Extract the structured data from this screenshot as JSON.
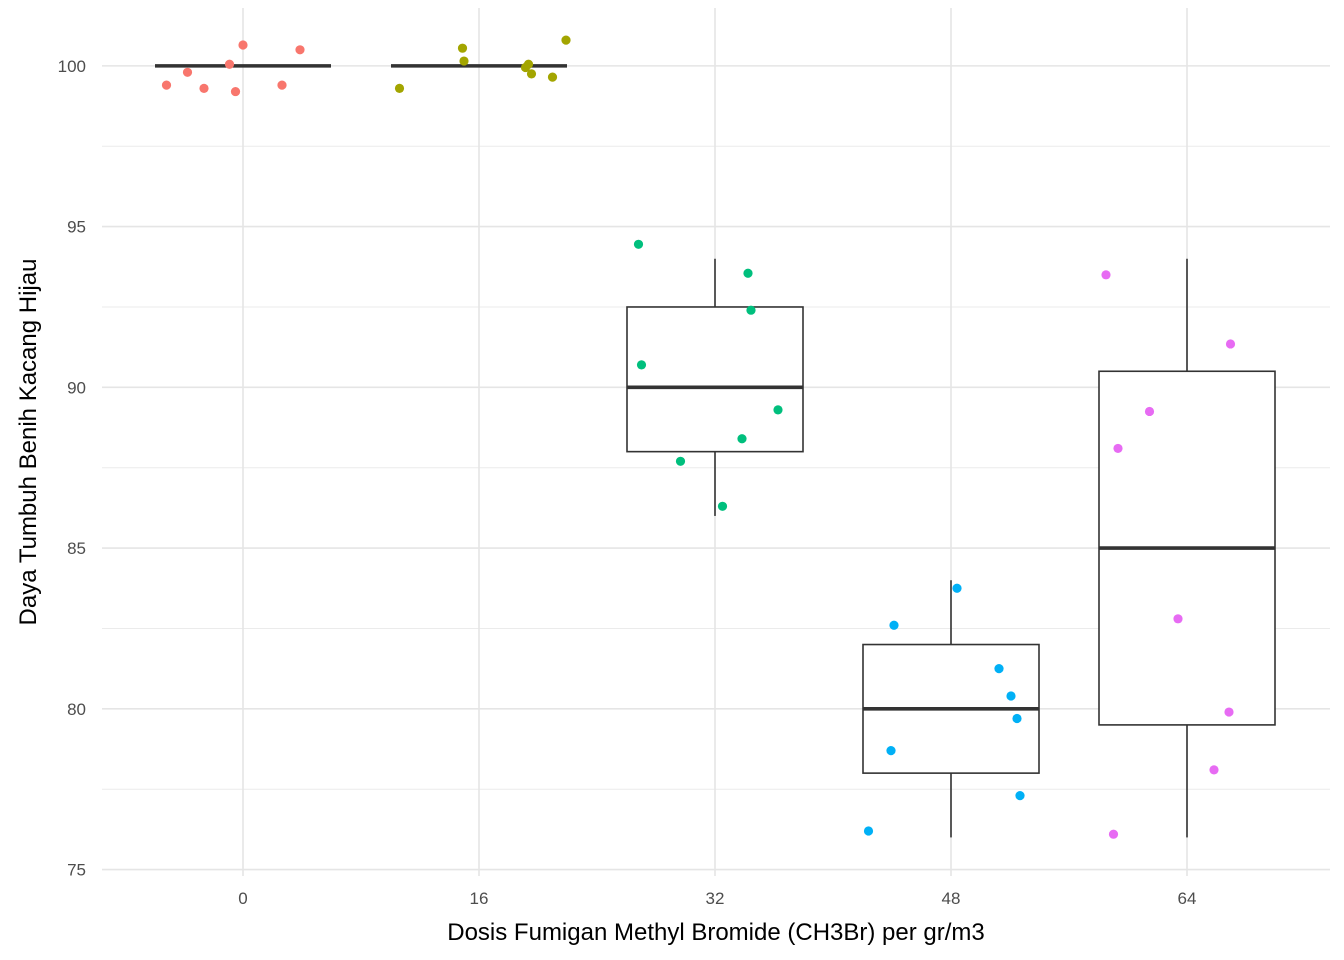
{
  "chart_data": {
    "type": "box-jitter",
    "xlabel": "Dosis Fumigan Methyl Bromide (CH3Br) per gr/m3",
    "ylabel": "Daya Tumbuh Benih Kacang Hijau",
    "categories": [
      "0",
      "16",
      "32",
      "48",
      "64"
    ],
    "ylim": [
      74.8,
      101.8
    ],
    "yticks": [
      "75",
      "80",
      "85",
      "90",
      "95",
      "100"
    ],
    "grid": true,
    "legend": "none",
    "colors": [
      "#F8766D",
      "#A3A500",
      "#00BF7D",
      "#00B0F6",
      "#E76BF3"
    ],
    "boxes": [
      {
        "category": "0",
        "min": 100,
        "q1": 100,
        "median": 100,
        "q3": 100,
        "max": 100
      },
      {
        "category": "16",
        "min": 100,
        "q1": 100,
        "median": 100,
        "q3": 100,
        "max": 100
      },
      {
        "category": "32",
        "min": 86,
        "q1": 88,
        "median": 90,
        "q3": 92.5,
        "max": 94
      },
      {
        "category": "48",
        "min": 76,
        "q1": 78,
        "median": 80,
        "q3": 82,
        "max": 84
      },
      {
        "category": "64",
        "min": 76,
        "q1": 79.5,
        "median": 85,
        "q3": 90.5,
        "max": 94
      }
    ],
    "points": [
      {
        "category": "0",
        "jitter": [
          -5.1,
          -3.7,
          -2.6,
          -0.9,
          -0.5,
          0.0,
          2.6,
          3.8
        ],
        "values": [
          99.4,
          99.8,
          99.3,
          100.05,
          99.2,
          100.65,
          99.4,
          100.5
        ]
      },
      {
        "category": "16",
        "jitter": [
          -5.3,
          -1.1,
          -1.0,
          3.1,
          3.3,
          3.5,
          4.9,
          5.8
        ],
        "values": [
          99.3,
          100.55,
          100.15,
          99.95,
          100.05,
          99.75,
          99.65,
          100.8
        ]
      },
      {
        "category": "32",
        "jitter": [
          -5.1,
          -4.9,
          -2.3,
          0.5,
          1.8,
          2.2,
          2.4,
          4.2
        ],
        "values": [
          94.45,
          90.7,
          87.7,
          86.3,
          88.4,
          93.55,
          92.4,
          89.3
        ]
      },
      {
        "category": "48",
        "jitter": [
          -5.5,
          -4.0,
          -3.8,
          0.4,
          3.2,
          4.0,
          4.4,
          4.6
        ],
        "values": [
          76.2,
          78.7,
          82.6,
          83.75,
          81.25,
          80.4,
          79.7,
          77.3
        ]
      },
      {
        "category": "64",
        "jitter": [
          -5.4,
          -4.9,
          -4.6,
          -2.5,
          -0.6,
          1.8,
          2.8,
          2.9
        ],
        "values": [
          93.5,
          76.1,
          88.1,
          89.25,
          82.8,
          78.1,
          79.9,
          91.35
        ]
      }
    ]
  }
}
